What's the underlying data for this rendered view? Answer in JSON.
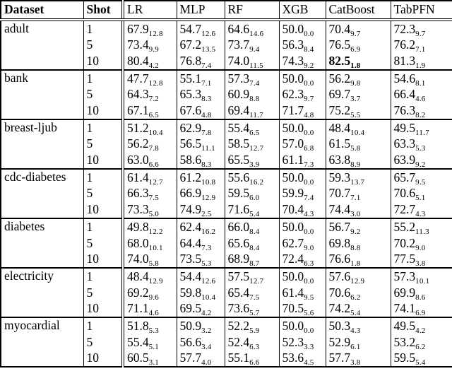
{
  "table": {
    "columns": [
      {
        "label": "Dataset"
      },
      {
        "label": "Shot"
      },
      {
        "label": "LR"
      },
      {
        "label": "MLP"
      },
      {
        "label": "RF"
      },
      {
        "label": "XGB"
      },
      {
        "label": "CatBoost"
      },
      {
        "label": "TabPFN"
      }
    ],
    "groups": [
      {
        "dataset": "adult",
        "rows": [
          {
            "shot": "1",
            "values": [
              {
                "mean": "67.9",
                "std": "12.8"
              },
              {
                "mean": "54.7",
                "std": "12.6"
              },
              {
                "mean": "64.6",
                "std": "14.6"
              },
              {
                "mean": "50.0",
                "std": "0.0"
              },
              {
                "mean": "70.4",
                "std": "9.7"
              },
              {
                "mean": "72.3",
                "std": "9.7"
              }
            ]
          },
          {
            "shot": "5",
            "values": [
              {
                "mean": "73.4",
                "std": "9.9"
              },
              {
                "mean": "67.2",
                "std": "13.5"
              },
              {
                "mean": "73.7",
                "std": "9.4"
              },
              {
                "mean": "56.3",
                "std": "8.4"
              },
              {
                "mean": "76.5",
                "std": "6.9"
              },
              {
                "mean": "76.2",
                "std": "7.1"
              }
            ]
          },
          {
            "shot": "10",
            "values": [
              {
                "mean": "80.4",
                "std": "4.2"
              },
              {
                "mean": "76.8",
                "std": "7.4"
              },
              {
                "mean": "74.0",
                "std": "11.5"
              },
              {
                "mean": "74.3",
                "std": "9.2"
              },
              {
                "mean": "82.5",
                "std": "1.8",
                "bold": true
              },
              {
                "mean": "81.3",
                "std": "1.9"
              }
            ]
          }
        ]
      },
      {
        "dataset": "bank",
        "rows": [
          {
            "shot": "1",
            "values": [
              {
                "mean": "47.7",
                "std": "12.8"
              },
              {
                "mean": "55.1",
                "std": "7.1"
              },
              {
                "mean": "57.3",
                "std": "7.4"
              },
              {
                "mean": "50.0",
                "std": "0.0"
              },
              {
                "mean": "56.2",
                "std": "9.8"
              },
              {
                "mean": "54.6",
                "std": "8.1"
              }
            ]
          },
          {
            "shot": "5",
            "values": [
              {
                "mean": "64.3",
                "std": "7.2"
              },
              {
                "mean": "65.3",
                "std": "8.3"
              },
              {
                "mean": "60.9",
                "std": "8.8"
              },
              {
                "mean": "62.3",
                "std": "9.7"
              },
              {
                "mean": "69.7",
                "std": "3.7"
              },
              {
                "mean": "66.4",
                "std": "4.6"
              }
            ]
          },
          {
            "shot": "10",
            "values": [
              {
                "mean": "67.1",
                "std": "6.5"
              },
              {
                "mean": "67.6",
                "std": "4.8"
              },
              {
                "mean": "69.4",
                "std": "11.7"
              },
              {
                "mean": "71.7",
                "std": "4.8"
              },
              {
                "mean": "75.2",
                "std": "5.5"
              },
              {
                "mean": "76.3",
                "std": "8.2"
              }
            ]
          }
        ]
      },
      {
        "dataset": "breast-ljub",
        "rows": [
          {
            "shot": "1",
            "values": [
              {
                "mean": "51.2",
                "std": "10.4"
              },
              {
                "mean": "62.9",
                "std": "7.8"
              },
              {
                "mean": "55.4",
                "std": "6.5"
              },
              {
                "mean": "50.0",
                "std": "0.0"
              },
              {
                "mean": "48.4",
                "std": "10.4"
              },
              {
                "mean": "49.5",
                "std": "11.7"
              }
            ]
          },
          {
            "shot": "5",
            "values": [
              {
                "mean": "56.2",
                "std": "7.8"
              },
              {
                "mean": "56.5",
                "std": "11.1"
              },
              {
                "mean": "58.5",
                "std": "12.7"
              },
              {
                "mean": "57.0",
                "std": "6.8"
              },
              {
                "mean": "61.5",
                "std": "5.8"
              },
              {
                "mean": "63.3",
                "std": "5.3"
              }
            ]
          },
          {
            "shot": "10",
            "values": [
              {
                "mean": "63.0",
                "std": "6.6"
              },
              {
                "mean": "58.6",
                "std": "8.3"
              },
              {
                "mean": "65.5",
                "std": "3.9"
              },
              {
                "mean": "61.1",
                "std": "7.3"
              },
              {
                "mean": "63.8",
                "std": "8.9"
              },
              {
                "mean": "63.9",
                "std": "9.2"
              }
            ]
          }
        ]
      },
      {
        "dataset": "cdc-diabetes",
        "rows": [
          {
            "shot": "1",
            "values": [
              {
                "mean": "61.4",
                "std": "12.7"
              },
              {
                "mean": "61.2",
                "std": "10.8"
              },
              {
                "mean": "55.6",
                "std": "16.2"
              },
              {
                "mean": "50.0",
                "std": "0.0"
              },
              {
                "mean": "59.3",
                "std": "13.7"
              },
              {
                "mean": "65.7",
                "std": "9.5"
              }
            ]
          },
          {
            "shot": "5",
            "values": [
              {
                "mean": "66.3",
                "std": "7.5"
              },
              {
                "mean": "66.9",
                "std": "12.9"
              },
              {
                "mean": "59.5",
                "std": "6.0"
              },
              {
                "mean": "59.9",
                "std": "7.4"
              },
              {
                "mean": "70.7",
                "std": "7.1"
              },
              {
                "mean": "70.6",
                "std": "5.1"
              }
            ]
          },
          {
            "shot": "10",
            "values": [
              {
                "mean": "73.3",
                "std": "5.0"
              },
              {
                "mean": "74.9",
                "std": "2.5"
              },
              {
                "mean": "71.6",
                "std": "5.4"
              },
              {
                "mean": "70.4",
                "std": "4.3"
              },
              {
                "mean": "74.4",
                "std": "3.0"
              },
              {
                "mean": "72.7",
                "std": "4.3"
              }
            ]
          }
        ]
      },
      {
        "dataset": "diabetes",
        "rows": [
          {
            "shot": "1",
            "values": [
              {
                "mean": "49.8",
                "std": "12.2"
              },
              {
                "mean": "62.4",
                "std": "16.2"
              },
              {
                "mean": "66.0",
                "std": "8.4"
              },
              {
                "mean": "50.0",
                "std": "0.0"
              },
              {
                "mean": "56.7",
                "std": "9.2"
              },
              {
                "mean": "55.2",
                "std": "11.3"
              }
            ]
          },
          {
            "shot": "5",
            "values": [
              {
                "mean": "68.0",
                "std": "10.1"
              },
              {
                "mean": "64.4",
                "std": "7.3"
              },
              {
                "mean": "65.6",
                "std": "8.4"
              },
              {
                "mean": "62.7",
                "std": "9.0"
              },
              {
                "mean": "69.8",
                "std": "8.8"
              },
              {
                "mean": "70.2",
                "std": "9.0"
              }
            ]
          },
          {
            "shot": "10",
            "values": [
              {
                "mean": "74.0",
                "std": "5.8"
              },
              {
                "mean": "73.5",
                "std": "5.3"
              },
              {
                "mean": "68.9",
                "std": "8.7"
              },
              {
                "mean": "72.4",
                "std": "6.3"
              },
              {
                "mean": "76.6",
                "std": "1.8"
              },
              {
                "mean": "77.5",
                "std": "3.8"
              }
            ]
          }
        ]
      },
      {
        "dataset": "electricity",
        "rows": [
          {
            "shot": "1",
            "values": [
              {
                "mean": "48.4",
                "std": "12.9"
              },
              {
                "mean": "54.4",
                "std": "12.6"
              },
              {
                "mean": "57.5",
                "std": "12.7"
              },
              {
                "mean": "50.0",
                "std": "0.0"
              },
              {
                "mean": "57.6",
                "std": "12.9"
              },
              {
                "mean": "57.3",
                "std": "10.1"
              }
            ]
          },
          {
            "shot": "5",
            "values": [
              {
                "mean": "69.2",
                "std": "9.6"
              },
              {
                "mean": "59.8",
                "std": "10.4"
              },
              {
                "mean": "65.4",
                "std": "7.5"
              },
              {
                "mean": "61.4",
                "std": "9.5"
              },
              {
                "mean": "70.6",
                "std": "6.2"
              },
              {
                "mean": "69.9",
                "std": "8.6"
              }
            ]
          },
          {
            "shot": "10",
            "values": [
              {
                "mean": "71.1",
                "std": "4.6"
              },
              {
                "mean": "69.5",
                "std": "4.2"
              },
              {
                "mean": "73.6",
                "std": "5.7"
              },
              {
                "mean": "70.5",
                "std": "5.6"
              },
              {
                "mean": "74.2",
                "std": "5.4"
              },
              {
                "mean": "74.1",
                "std": "6.9"
              }
            ]
          }
        ]
      },
      {
        "dataset": "myocardial",
        "rows": [
          {
            "shot": "1",
            "values": [
              {
                "mean": "51.8",
                "std": "5.3"
              },
              {
                "mean": "50.9",
                "std": "3.2"
              },
              {
                "mean": "52.2",
                "std": "5.9"
              },
              {
                "mean": "50.0",
                "std": "0.0"
              },
              {
                "mean": "50.3",
                "std": "4.3"
              },
              {
                "mean": "49.5",
                "std": "4.2"
              }
            ]
          },
          {
            "shot": "5",
            "values": [
              {
                "mean": "55.4",
                "std": "5.1"
              },
              {
                "mean": "56.6",
                "std": "3.4"
              },
              {
                "mean": "52.4",
                "std": "6.3"
              },
              {
                "mean": "52.3",
                "std": "3.3"
              },
              {
                "mean": "52.9",
                "std": "6.1"
              },
              {
                "mean": "53.2",
                "std": "6.2"
              }
            ]
          },
          {
            "shot": "10",
            "values": [
              {
                "mean": "60.5",
                "std": "3.1"
              },
              {
                "mean": "57.7",
                "std": "4.0"
              },
              {
                "mean": "55.1",
                "std": "6.6"
              },
              {
                "mean": "53.6",
                "std": "4.5"
              },
              {
                "mean": "57.7",
                "std": "3.8"
              },
              {
                "mean": "59.5",
                "std": "5.4"
              }
            ]
          }
        ]
      }
    ]
  },
  "colors": {
    "border": "#000000",
    "text": "#000000",
    "background": "#ffffff"
  }
}
